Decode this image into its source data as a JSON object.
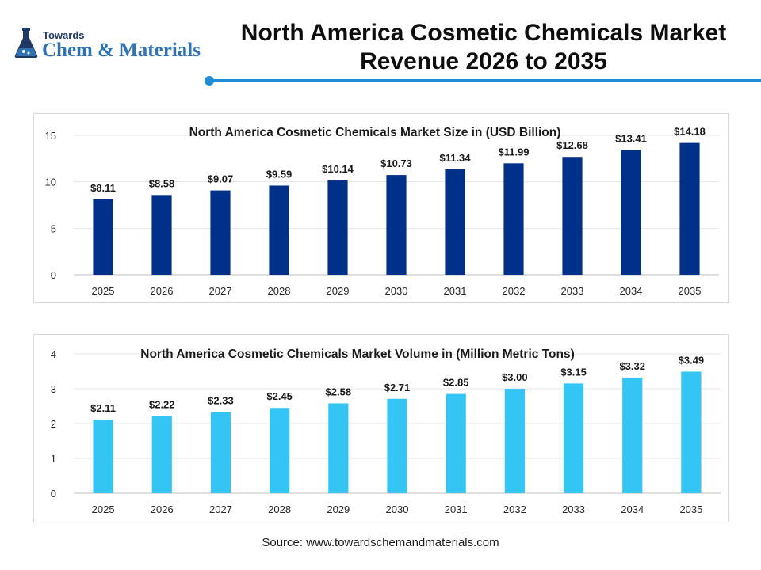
{
  "brand": {
    "line1": "Towards",
    "line2": "Chem & Materials"
  },
  "page": {
    "title_line1": "North America Cosmetic Chemicals Market",
    "title_line2": "Revenue 2026 to 2035",
    "source": "Source: www.towardschemandmaterials.com"
  },
  "colors": {
    "accent": "#1f8dd6",
    "revenue_bar": "#003087",
    "volume_bar": "#35c5f4"
  },
  "chart_data": [
    {
      "type": "bar",
      "title": "North America Cosmetic Chemicals Market Size in (USD Billion)",
      "categories": [
        "2025",
        "2026",
        "2027",
        "2028",
        "2029",
        "2030",
        "2031",
        "2032",
        "2033",
        "2034",
        "2035"
      ],
      "values": [
        8.11,
        8.58,
        9.07,
        9.59,
        10.14,
        10.73,
        11.34,
        11.99,
        12.68,
        13.41,
        14.18
      ],
      "data_labels": [
        "$8.11",
        "$8.58",
        "$9.07",
        "$9.59",
        "$10.14",
        "$10.73",
        "$11.34",
        "$11.99",
        "$12.68",
        "$13.41",
        "$14.18"
      ],
      "ylim": [
        0,
        15
      ],
      "yticks": [
        0,
        5,
        10,
        15
      ],
      "grid": true,
      "color": "#003087"
    },
    {
      "type": "bar",
      "title": "North America Cosmetic Chemicals Market Volume in (Million Metric Tons)",
      "categories": [
        "2025",
        "2026",
        "2027",
        "2028",
        "2029",
        "2030",
        "2031",
        "2032",
        "2033",
        "2034",
        "2035"
      ],
      "values": [
        2.11,
        2.22,
        2.33,
        2.45,
        2.58,
        2.71,
        2.85,
        3.0,
        3.15,
        3.32,
        3.49
      ],
      "data_labels": [
        "$2.11",
        "$2.22",
        "$2.33",
        "$2.45",
        "$2.58",
        "$2.71",
        "$2.85",
        "$3.00",
        "$3.15",
        "$3.32",
        "$3.49"
      ],
      "ylim": [
        0,
        4
      ],
      "yticks": [
        0,
        1,
        2,
        3,
        4
      ],
      "grid": true,
      "color": "#35c5f4"
    }
  ]
}
